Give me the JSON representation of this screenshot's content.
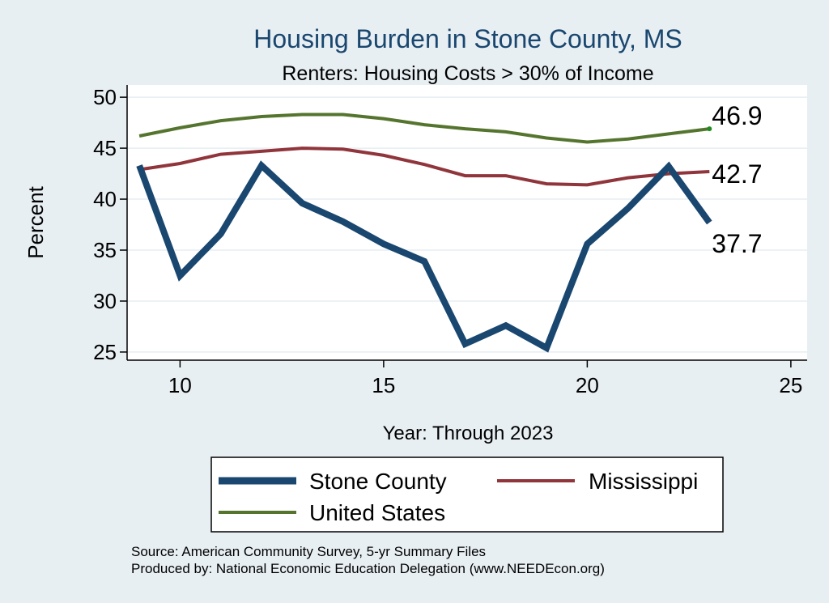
{
  "chart_data": {
    "type": "line",
    "title": "Housing Burden in Stone County, MS",
    "subtitle": "Renters: Housing Costs > 30% of Income",
    "xlabel": "Year: Through 2023",
    "ylabel": "Percent",
    "xlim": [
      8.7,
      25.4
    ],
    "ylim": [
      24.2,
      51.2
    ],
    "x_ticks": [
      10,
      15,
      20,
      25
    ],
    "y_ticks": [
      25,
      30,
      35,
      40,
      45,
      50
    ],
    "grid": true,
    "legend_position": "bottom",
    "x": [
      9,
      10,
      11,
      12,
      13,
      14,
      15,
      16,
      17,
      18,
      19,
      20,
      21,
      22,
      23
    ],
    "series": [
      {
        "name": "Stone County",
        "color": "#1a476f",
        "values": [
          43.3,
          32.5,
          36.6,
          43.3,
          39.6,
          37.8,
          35.6,
          33.9,
          25.8,
          27.6,
          25.4,
          35.6,
          39.1,
          43.2,
          37.7
        ],
        "end_label": "37.7"
      },
      {
        "name": "Mississippi",
        "color": "#90353b",
        "values": [
          42.9,
          43.5,
          44.4,
          44.7,
          45.0,
          44.9,
          44.3,
          43.4,
          42.3,
          42.3,
          41.5,
          41.4,
          42.1,
          42.5,
          42.7
        ],
        "end_label": "42.7"
      },
      {
        "name": "United States",
        "color": "#55752f",
        "values": [
          46.2,
          47.0,
          47.7,
          48.1,
          48.3,
          48.3,
          47.9,
          47.3,
          46.9,
          46.6,
          46.0,
          45.6,
          45.9,
          46.4,
          46.9
        ],
        "end_label": "46.9"
      }
    ]
  },
  "source_note": "Source: American Community Survey, 5-yr Summary Files",
  "produced_by": "Produced by: National Economic Education Delegation (www.NEEDEcon.org)"
}
